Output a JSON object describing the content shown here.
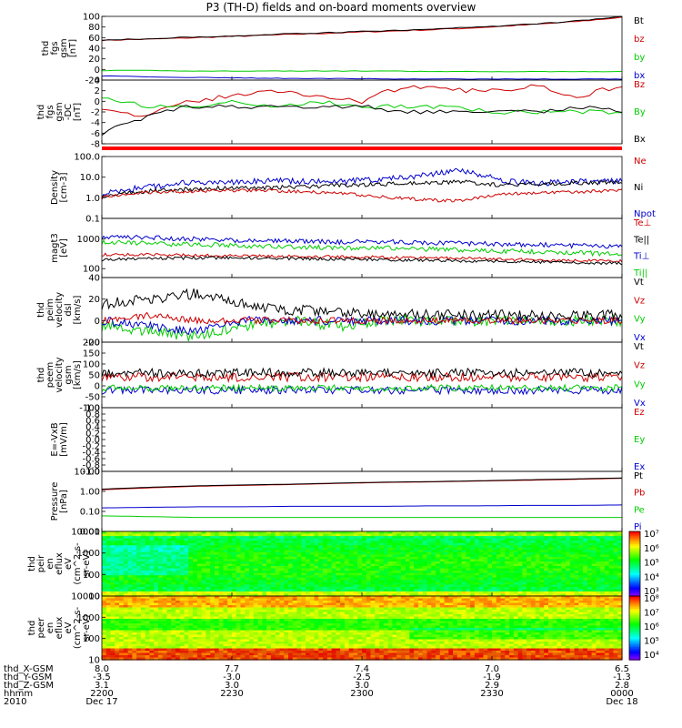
{
  "title": "P3 (TH-D) fields and on-board moments overview",
  "colors": {
    "black": "#000000",
    "red": "#cc0000",
    "green": "#00cc00",
    "blue": "#0000cc",
    "bar": "#ff0000"
  },
  "chart_data": [
    {
      "id": "p1",
      "type": "line",
      "ylabel": [
        "thd",
        "fgs",
        "gsm",
        "[nT]"
      ],
      "ylim": [
        -20,
        100
      ],
      "scale": "linear",
      "ticks": [
        "100",
        "80",
        "60",
        "40",
        "20",
        "0",
        "-20"
      ],
      "legend": [
        {
          "label": "Bt",
          "color": "black"
        },
        {
          "label": "bz",
          "color": "red"
        },
        {
          "label": "by",
          "color": "green"
        },
        {
          "label": "bx",
          "color": "blue"
        }
      ],
      "series": [
        {
          "color": "red",
          "style": "smooth",
          "values": [
            55,
            57,
            60,
            63,
            66,
            69,
            72,
            75,
            79,
            84,
            90,
            98
          ],
          "noise": 1
        },
        {
          "color": "black",
          "style": "smooth",
          "values": [
            56,
            58,
            61,
            64,
            67,
            70,
            73,
            76,
            80,
            85,
            91,
            100
          ],
          "noise": 1
        },
        {
          "color": "green",
          "style": "smooth",
          "values": [
            -2,
            -2,
            -3,
            -3,
            -3,
            -3,
            -3,
            -4,
            -4,
            -4,
            -4,
            -4
          ],
          "noise": 0.5
        },
        {
          "color": "blue",
          "style": "smooth",
          "values": [
            -12,
            -14,
            -15,
            -16,
            -17,
            -17,
            -18,
            -18,
            -18,
            -18,
            -18,
            -18
          ],
          "noise": 0.5
        }
      ]
    },
    {
      "id": "p2",
      "type": "line",
      "ylabel": [
        "thd",
        "fgs",
        "gsm",
        "-DC",
        "[nT]"
      ],
      "ylim": [
        -8,
        4
      ],
      "scale": "linear",
      "ticks": [
        "4",
        "2",
        "0",
        "-2",
        "-4",
        "-6",
        "-8"
      ],
      "legend": [
        {
          "label": "Bz",
          "color": "red"
        },
        {
          "label": "By",
          "color": "green"
        },
        {
          "label": "Bx",
          "color": "black"
        }
      ],
      "series": [
        {
          "color": "red",
          "style": "smooth",
          "values": [
            -1,
            -3,
            0,
            1,
            2,
            1,
            0,
            3,
            2,
            2,
            3,
            1,
            3
          ],
          "noise": 0.5
        },
        {
          "color": "green",
          "style": "smooth",
          "values": [
            1,
            -1,
            -1,
            0,
            -1,
            0,
            -1,
            -1,
            -1,
            -2,
            -2,
            -2,
            -2
          ],
          "noise": 0.4
        },
        {
          "color": "black",
          "style": "smooth",
          "values": [
            -6,
            -3,
            -1,
            -1,
            -1,
            -1,
            -1,
            -2,
            -2,
            -2,
            -2,
            -1,
            -2
          ],
          "noise": 0.4
        }
      ]
    },
    {
      "id": "p3",
      "type": "line",
      "ylabel": [
        "Density",
        "[cm-3]"
      ],
      "ylim": [
        0.1,
        100
      ],
      "scale": "log",
      "ticks": [
        "100.0",
        "10.0",
        "1.0",
        "0.1"
      ],
      "legend": [
        {
          "label": "Ne",
          "color": "red"
        },
        {
          "label": "Ni",
          "color": "black"
        },
        {
          "label": "Npot",
          "color": "blue"
        }
      ],
      "series": [
        {
          "color": "blue",
          "style": "noisy",
          "values": [
            1.5,
            3,
            5,
            5,
            7,
            6,
            6,
            8,
            12,
            20,
            6,
            5,
            6,
            7
          ],
          "noise": 0.15
        },
        {
          "color": "black",
          "style": "noisy",
          "values": [
            1.2,
            2,
            2.5,
            3,
            3,
            3.5,
            4,
            4.5,
            5,
            6,
            4,
            5,
            5,
            6
          ],
          "noise": 0.1
        },
        {
          "color": "red",
          "style": "noisy",
          "values": [
            1,
            1.8,
            2,
            2.2,
            2.3,
            2,
            1.6,
            1.1,
            0.8,
            0.7,
            1.5,
            1.8,
            2,
            2.2
          ],
          "noise": 0.08
        }
      ]
    },
    {
      "id": "p4",
      "type": "line",
      "ylabel": [
        "magt3",
        "[eV]"
      ],
      "ylim": [
        50,
        5000
      ],
      "scale": "log",
      "ticks": [
        "1000",
        "100"
      ],
      "legend": [
        {
          "label": "Te⊥",
          "color": "red"
        },
        {
          "label": "Te||",
          "color": "black"
        },
        {
          "label": "Ti⊥",
          "color": "blue"
        },
        {
          "label": "Ti||",
          "color": "green"
        }
      ],
      "series": [
        {
          "color": "blue",
          "style": "noisy",
          "values": [
            1200,
            1100,
            1000,
            900,
            850,
            800,
            800,
            750,
            700,
            650,
            600,
            550
          ],
          "noise": 0.08
        },
        {
          "color": "green",
          "style": "noisy",
          "values": [
            800,
            700,
            650,
            600,
            550,
            500,
            500,
            450,
            400,
            380,
            350,
            300
          ],
          "noise": 0.08
        },
        {
          "color": "red",
          "style": "noisy",
          "values": [
            300,
            300,
            280,
            270,
            260,
            250,
            240,
            230,
            220,
            200,
            190,
            180
          ],
          "noise": 0.05
        },
        {
          "color": "black",
          "style": "noisy",
          "values": [
            200,
            220,
            230,
            230,
            220,
            210,
            200,
            190,
            180,
            170,
            160,
            150
          ],
          "noise": 0.05
        }
      ]
    },
    {
      "id": "p5",
      "type": "line",
      "ylabel": [
        "thd",
        "peim",
        "velocity",
        "dsl",
        "[km/s]"
      ],
      "ylim": [
        -20,
        40
      ],
      "scale": "linear",
      "ticks": [
        "40",
        "20",
        "0",
        "-20"
      ],
      "legend": [
        {
          "label": "Vt",
          "color": "black"
        },
        {
          "label": "Vz",
          "color": "red"
        },
        {
          "label": "Vy",
          "color": "green"
        },
        {
          "label": "Vx",
          "color": "blue"
        }
      ],
      "series": [
        {
          "color": "green",
          "style": "noisy",
          "values": [
            -5,
            -10,
            -15,
            -5,
            0,
            -5,
            0,
            0,
            0,
            0,
            0,
            0
          ],
          "noise": 5
        },
        {
          "color": "blue",
          "style": "noisy",
          "values": [
            0,
            -5,
            -10,
            0,
            0,
            0,
            0,
            0,
            0,
            0,
            0,
            0
          ],
          "noise": 4
        },
        {
          "color": "red",
          "style": "noisy",
          "values": [
            0,
            5,
            0,
            0,
            0,
            0,
            0,
            0,
            0,
            0,
            0,
            0
          ],
          "noise": 3
        },
        {
          "color": "black",
          "style": "noisy",
          "values": [
            15,
            20,
            25,
            15,
            10,
            8,
            6,
            5,
            5,
            5,
            5,
            5
          ],
          "noise": 5
        }
      ]
    },
    {
      "id": "p6",
      "type": "line",
      "ylabel": [
        "thd",
        "peem",
        "velocity",
        "gsm",
        "[km/s]"
      ],
      "ylim": [
        -100,
        200
      ],
      "scale": "linear",
      "ticks": [
        "200",
        "150",
        "100",
        "50",
        "0",
        "-50",
        "-100"
      ],
      "legend": [
        {
          "label": "Vt",
          "color": "black"
        },
        {
          "label": "Vz",
          "color": "red"
        },
        {
          "label": "Vy",
          "color": "green"
        },
        {
          "label": "Vx",
          "color": "blue"
        }
      ],
      "series": [
        {
          "color": "blue",
          "style": "noisy",
          "values": [
            -20,
            -20,
            -20,
            -20,
            -20,
            -20,
            -20,
            -20,
            -20,
            -20,
            -20,
            -20
          ],
          "noise": 18
        },
        {
          "color": "green",
          "style": "noisy",
          "values": [
            -10,
            -10,
            -10,
            -10,
            -10,
            -10,
            -10,
            -10,
            -10,
            -10,
            -10,
            -10
          ],
          "noise": 15
        },
        {
          "color": "red",
          "style": "noisy",
          "values": [
            40,
            40,
            40,
            40,
            40,
            40,
            40,
            40,
            40,
            40,
            40,
            40
          ],
          "noise": 20
        },
        {
          "color": "black",
          "style": "noisy",
          "values": [
            60,
            60,
            60,
            60,
            60,
            60,
            60,
            60,
            60,
            60,
            60,
            60
          ],
          "noise": 20
        }
      ]
    },
    {
      "id": "p7",
      "type": "line",
      "ylabel": [
        "E=-VxB",
        "[mV/m]"
      ],
      "ylim": [
        -1,
        1
      ],
      "scale": "linear",
      "ticks": [
        "1.0",
        "0.8",
        "0.6",
        "0.4",
        "0.2",
        "0.0",
        "-0.2",
        "-0.4",
        "-0.6",
        "-0.8",
        "-1.0"
      ],
      "legend": [
        {
          "label": "Ez",
          "color": "red"
        },
        {
          "label": "Ey",
          "color": "green"
        },
        {
          "label": "Ex",
          "color": "blue"
        }
      ],
      "series": []
    },
    {
      "id": "p8",
      "type": "line",
      "ylabel": [
        "Pressure",
        "[nPa]"
      ],
      "ylim": [
        0.01,
        10
      ],
      "scale": "log",
      "ticks": [
        "10.00",
        "1.00",
        "0.10",
        "0.01"
      ],
      "legend": [
        {
          "label": "Pt",
          "color": "black"
        },
        {
          "label": "Pb",
          "color": "red"
        },
        {
          "label": "Pe",
          "color": "green"
        },
        {
          "label": "Pi",
          "color": "blue"
        }
      ],
      "series": [
        {
          "color": "red",
          "style": "smooth",
          "values": [
            1.2,
            1.5,
            1.8,
            2,
            2.2,
            2.5,
            2.8,
            3,
            3.3,
            3.6,
            4,
            4.5
          ],
          "noise": 0
        },
        {
          "color": "black",
          "style": "smooth",
          "values": [
            1.3,
            1.6,
            1.9,
            2.1,
            2.3,
            2.6,
            2.9,
            3.1,
            3.4,
            3.8,
            4.2,
            4.7
          ],
          "noise": 0
        },
        {
          "color": "blue",
          "style": "smooth",
          "values": [
            0.15,
            0.16,
            0.17,
            0.17,
            0.18,
            0.18,
            0.18,
            0.19,
            0.19,
            0.2,
            0.2,
            0.21
          ],
          "noise": 0
        },
        {
          "color": "green",
          "style": "smooth",
          "values": [
            0.06,
            0.055,
            0.05,
            0.05,
            0.05,
            0.05,
            0.05,
            0.05,
            0.05,
            0.05,
            0.05,
            0.05
          ],
          "noise": 0
        }
      ]
    },
    {
      "id": "p9",
      "type": "heatmap",
      "ylabel": [
        "thd",
        "peir",
        "en",
        "eflux",
        "eV",
        "(cm^2-s-",
        "sr-eV)"
      ],
      "ylim": [
        10,
        10000
      ],
      "scale": "log",
      "ticks": [
        "10000",
        "1000",
        "100",
        "10"
      ],
      "colorbar": [
        "10⁷",
        "10⁶",
        "10⁵",
        "10⁴",
        "10³"
      ],
      "cmin": 3,
      "cmax": 7.5
    },
    {
      "id": "p10",
      "type": "heatmap",
      "ylabel": [
        "thd",
        "peer",
        "en",
        "eflux",
        "eV",
        "(cm^2-s-",
        "sr-eV)"
      ],
      "ylim": [
        10,
        10000
      ],
      "scale": "log",
      "ticks": [
        "10000",
        "1000",
        "100",
        "10"
      ],
      "colorbar": [
        "10⁸",
        "10⁷",
        "10⁶",
        "10⁵",
        "10⁴"
      ],
      "cmin": 3.7,
      "cmax": 8.3
    }
  ],
  "xaxis": {
    "rows": [
      {
        "label": "thd_X-GSM",
        "values": [
          "8.0",
          "7.7",
          "7.4",
          "7.0",
          "6.5"
        ]
      },
      {
        "label": "thd_Y-GSM",
        "values": [
          "-3.5",
          "-3.0",
          "-2.5",
          "-1.9",
          "-1.3"
        ]
      },
      {
        "label": "thd_Z-GSM",
        "values": [
          "3.1",
          "3.0",
          "3.0",
          "2.9",
          "2.8"
        ]
      },
      {
        "label": "hhmm",
        "values": [
          "2200",
          "2230",
          "2300",
          "2330",
          "0000"
        ]
      },
      {
        "label": "2010",
        "values": [
          "Dec 17",
          "",
          "",
          "",
          "Dec 18"
        ]
      }
    ]
  }
}
